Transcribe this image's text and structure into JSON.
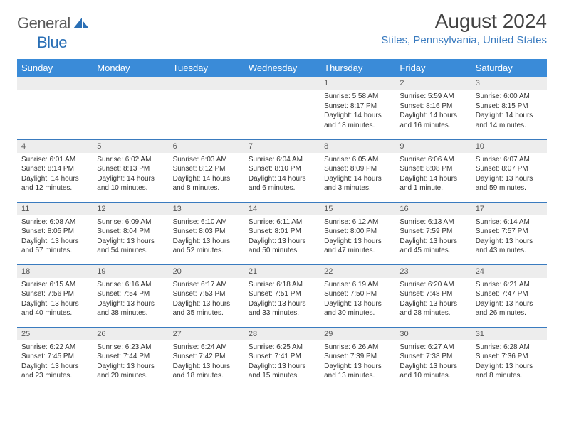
{
  "brand": {
    "name_gray": "General",
    "name_blue": "Blue"
  },
  "title": "August 2024",
  "location": "Stiles, Pennsylvania, United States",
  "colors": {
    "header_bg": "#3a8bd8",
    "header_text": "#ffffff",
    "accent": "#3a7bbf",
    "daynum_bg": "#ededed",
    "text": "#333333",
    "logo_gray": "#5a5a5a"
  },
  "day_headers": [
    "Sunday",
    "Monday",
    "Tuesday",
    "Wednesday",
    "Thursday",
    "Friday",
    "Saturday"
  ],
  "weeks": [
    [
      {
        "n": "",
        "sr": "",
        "ss": "",
        "dl": ""
      },
      {
        "n": "",
        "sr": "",
        "ss": "",
        "dl": ""
      },
      {
        "n": "",
        "sr": "",
        "ss": "",
        "dl": ""
      },
      {
        "n": "",
        "sr": "",
        "ss": "",
        "dl": ""
      },
      {
        "n": "1",
        "sr": "Sunrise: 5:58 AM",
        "ss": "Sunset: 8:17 PM",
        "dl": "Daylight: 14 hours and 18 minutes."
      },
      {
        "n": "2",
        "sr": "Sunrise: 5:59 AM",
        "ss": "Sunset: 8:16 PM",
        "dl": "Daylight: 14 hours and 16 minutes."
      },
      {
        "n": "3",
        "sr": "Sunrise: 6:00 AM",
        "ss": "Sunset: 8:15 PM",
        "dl": "Daylight: 14 hours and 14 minutes."
      }
    ],
    [
      {
        "n": "4",
        "sr": "Sunrise: 6:01 AM",
        "ss": "Sunset: 8:14 PM",
        "dl": "Daylight: 14 hours and 12 minutes."
      },
      {
        "n": "5",
        "sr": "Sunrise: 6:02 AM",
        "ss": "Sunset: 8:13 PM",
        "dl": "Daylight: 14 hours and 10 minutes."
      },
      {
        "n": "6",
        "sr": "Sunrise: 6:03 AM",
        "ss": "Sunset: 8:12 PM",
        "dl": "Daylight: 14 hours and 8 minutes."
      },
      {
        "n": "7",
        "sr": "Sunrise: 6:04 AM",
        "ss": "Sunset: 8:10 PM",
        "dl": "Daylight: 14 hours and 6 minutes."
      },
      {
        "n": "8",
        "sr": "Sunrise: 6:05 AM",
        "ss": "Sunset: 8:09 PM",
        "dl": "Daylight: 14 hours and 3 minutes."
      },
      {
        "n": "9",
        "sr": "Sunrise: 6:06 AM",
        "ss": "Sunset: 8:08 PM",
        "dl": "Daylight: 14 hours and 1 minute."
      },
      {
        "n": "10",
        "sr": "Sunrise: 6:07 AM",
        "ss": "Sunset: 8:07 PM",
        "dl": "Daylight: 13 hours and 59 minutes."
      }
    ],
    [
      {
        "n": "11",
        "sr": "Sunrise: 6:08 AM",
        "ss": "Sunset: 8:05 PM",
        "dl": "Daylight: 13 hours and 57 minutes."
      },
      {
        "n": "12",
        "sr": "Sunrise: 6:09 AM",
        "ss": "Sunset: 8:04 PM",
        "dl": "Daylight: 13 hours and 54 minutes."
      },
      {
        "n": "13",
        "sr": "Sunrise: 6:10 AM",
        "ss": "Sunset: 8:03 PM",
        "dl": "Daylight: 13 hours and 52 minutes."
      },
      {
        "n": "14",
        "sr": "Sunrise: 6:11 AM",
        "ss": "Sunset: 8:01 PM",
        "dl": "Daylight: 13 hours and 50 minutes."
      },
      {
        "n": "15",
        "sr": "Sunrise: 6:12 AM",
        "ss": "Sunset: 8:00 PM",
        "dl": "Daylight: 13 hours and 47 minutes."
      },
      {
        "n": "16",
        "sr": "Sunrise: 6:13 AM",
        "ss": "Sunset: 7:59 PM",
        "dl": "Daylight: 13 hours and 45 minutes."
      },
      {
        "n": "17",
        "sr": "Sunrise: 6:14 AM",
        "ss": "Sunset: 7:57 PM",
        "dl": "Daylight: 13 hours and 43 minutes."
      }
    ],
    [
      {
        "n": "18",
        "sr": "Sunrise: 6:15 AM",
        "ss": "Sunset: 7:56 PM",
        "dl": "Daylight: 13 hours and 40 minutes."
      },
      {
        "n": "19",
        "sr": "Sunrise: 6:16 AM",
        "ss": "Sunset: 7:54 PM",
        "dl": "Daylight: 13 hours and 38 minutes."
      },
      {
        "n": "20",
        "sr": "Sunrise: 6:17 AM",
        "ss": "Sunset: 7:53 PM",
        "dl": "Daylight: 13 hours and 35 minutes."
      },
      {
        "n": "21",
        "sr": "Sunrise: 6:18 AM",
        "ss": "Sunset: 7:51 PM",
        "dl": "Daylight: 13 hours and 33 minutes."
      },
      {
        "n": "22",
        "sr": "Sunrise: 6:19 AM",
        "ss": "Sunset: 7:50 PM",
        "dl": "Daylight: 13 hours and 30 minutes."
      },
      {
        "n": "23",
        "sr": "Sunrise: 6:20 AM",
        "ss": "Sunset: 7:48 PM",
        "dl": "Daylight: 13 hours and 28 minutes."
      },
      {
        "n": "24",
        "sr": "Sunrise: 6:21 AM",
        "ss": "Sunset: 7:47 PM",
        "dl": "Daylight: 13 hours and 26 minutes."
      }
    ],
    [
      {
        "n": "25",
        "sr": "Sunrise: 6:22 AM",
        "ss": "Sunset: 7:45 PM",
        "dl": "Daylight: 13 hours and 23 minutes."
      },
      {
        "n": "26",
        "sr": "Sunrise: 6:23 AM",
        "ss": "Sunset: 7:44 PM",
        "dl": "Daylight: 13 hours and 20 minutes."
      },
      {
        "n": "27",
        "sr": "Sunrise: 6:24 AM",
        "ss": "Sunset: 7:42 PM",
        "dl": "Daylight: 13 hours and 18 minutes."
      },
      {
        "n": "28",
        "sr": "Sunrise: 6:25 AM",
        "ss": "Sunset: 7:41 PM",
        "dl": "Daylight: 13 hours and 15 minutes."
      },
      {
        "n": "29",
        "sr": "Sunrise: 6:26 AM",
        "ss": "Sunset: 7:39 PM",
        "dl": "Daylight: 13 hours and 13 minutes."
      },
      {
        "n": "30",
        "sr": "Sunrise: 6:27 AM",
        "ss": "Sunset: 7:38 PM",
        "dl": "Daylight: 13 hours and 10 minutes."
      },
      {
        "n": "31",
        "sr": "Sunrise: 6:28 AM",
        "ss": "Sunset: 7:36 PM",
        "dl": "Daylight: 13 hours and 8 minutes."
      }
    ]
  ]
}
